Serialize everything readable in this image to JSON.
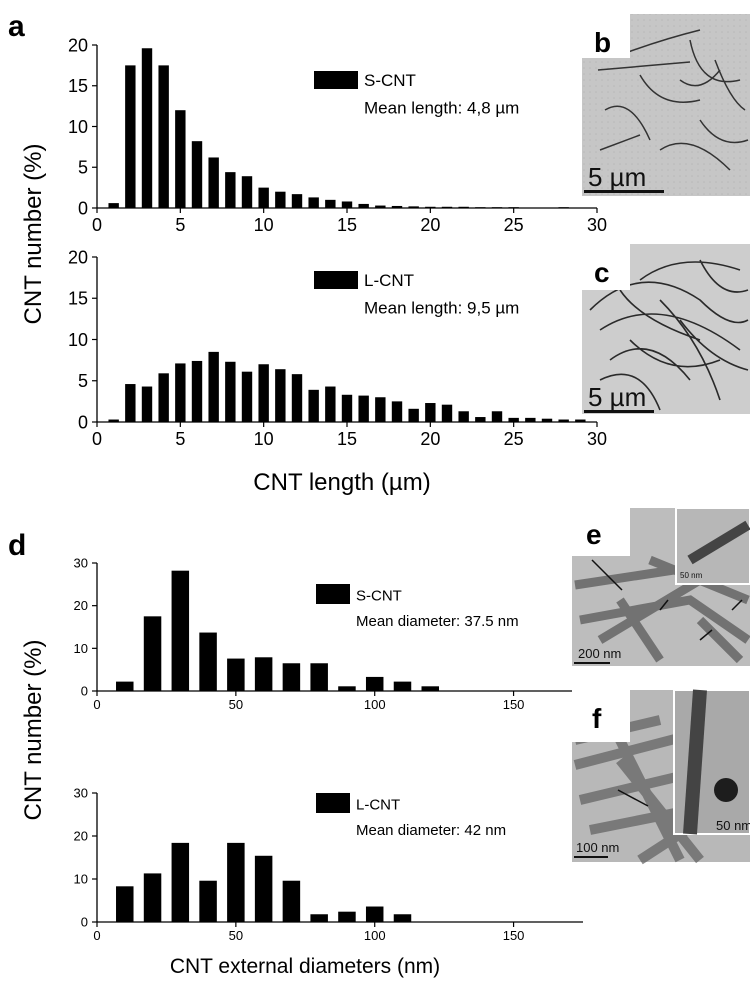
{
  "panels": {
    "a": "a",
    "b": "b",
    "c": "c",
    "d": "d",
    "e": "e",
    "f": "f"
  },
  "scale_bars": {
    "b": "5 µm",
    "c": "5 µm",
    "e": "200 nm",
    "e_inset": "50 nm",
    "f": "100 nm",
    "f_inset": "50 nm"
  },
  "colors": {
    "bar": "#000000",
    "axis": "#000000",
    "tem_bg": "#c9c9c9"
  },
  "chart_data": [
    {
      "id": "a-top",
      "type": "bar",
      "legend": "S-CNT",
      "legend_note": "Mean length: 4,8 µm",
      "ylabel": "CNT number (%)",
      "xlabel": "",
      "xlim": [
        0,
        30
      ],
      "ylim": [
        0,
        20
      ],
      "xticks": [
        0,
        5,
        10,
        15,
        20,
        25,
        30
      ],
      "yticks": [
        0,
        5,
        10,
        15,
        20
      ],
      "x": [
        1,
        2,
        3,
        4,
        5,
        6,
        7,
        8,
        9,
        10,
        11,
        12,
        13,
        14,
        15,
        16,
        17,
        18,
        19,
        20,
        21,
        22,
        23,
        24,
        25,
        26,
        27,
        28,
        29
      ],
      "values": [
        0.6,
        17.5,
        19.6,
        17.5,
        12,
        8.2,
        6.2,
        4.4,
        3.9,
        2.5,
        2,
        1.7,
        1.3,
        1,
        0.8,
        0.5,
        0.3,
        0.25,
        0.2,
        0.15,
        0.15,
        0.15,
        0.1,
        0.1,
        0.1,
        0.05,
        0.05,
        0.1,
        0.05
      ]
    },
    {
      "id": "a-bottom",
      "type": "bar",
      "legend": "L-CNT",
      "legend_note": "Mean length: 9,5 µm",
      "xlabel": "CNT length (µm)",
      "xlim": [
        0,
        30
      ],
      "ylim": [
        0,
        20
      ],
      "xticks": [
        0,
        5,
        10,
        15,
        20,
        25,
        30
      ],
      "yticks": [
        0,
        5,
        10,
        15,
        20
      ],
      "x": [
        1,
        2,
        3,
        4,
        5,
        6,
        7,
        8,
        9,
        10,
        11,
        12,
        13,
        14,
        15,
        16,
        17,
        18,
        19,
        20,
        21,
        22,
        23,
        24,
        25,
        26,
        27,
        28,
        29
      ],
      "values": [
        0.3,
        4.6,
        4.3,
        5.9,
        7.1,
        7.4,
        8.5,
        7.3,
        6.1,
        7,
        6.4,
        5.8,
        3.9,
        4.3,
        3.3,
        3.2,
        3,
        2.5,
        1.6,
        2.3,
        2.1,
        1.3,
        0.6,
        1.3,
        0.5,
        0.5,
        0.4,
        0.3,
        0.3
      ]
    },
    {
      "id": "d-top",
      "type": "bar",
      "legend": "S-CNT",
      "legend_note": "Mean diameter: 37.5 nm",
      "ylabel": "CNT number (%)",
      "xlabel": "",
      "xlim": [
        0,
        175
      ],
      "ylim": [
        0,
        30
      ],
      "xticks": [
        0,
        50,
        100,
        150
      ],
      "yticks": [
        0,
        10,
        20,
        30
      ],
      "x": [
        10,
        20,
        30,
        40,
        50,
        60,
        70,
        80,
        90,
        100,
        110,
        120
      ],
      "values": [
        2.2,
        17.5,
        28.2,
        13.7,
        7.6,
        7.9,
        6.5,
        6.5,
        1.1,
        3.3,
        2.2,
        1.1
      ]
    },
    {
      "id": "d-bottom",
      "type": "bar",
      "legend": "L-CNT",
      "legend_note": "Mean diameter: 42 nm",
      "xlabel": "CNT external diameters (nm)",
      "xlim": [
        0,
        175
      ],
      "ylim": [
        0,
        30
      ],
      "xticks": [
        0,
        50,
        100,
        150
      ],
      "yticks": [
        0,
        10,
        20,
        30
      ],
      "x": [
        10,
        20,
        30,
        40,
        50,
        60,
        70,
        80,
        90,
        100,
        110
      ],
      "values": [
        8.3,
        11.3,
        18.4,
        9.6,
        18.4,
        15.4,
        9.6,
        1.8,
        2.4,
        3.6,
        1.8
      ]
    }
  ]
}
